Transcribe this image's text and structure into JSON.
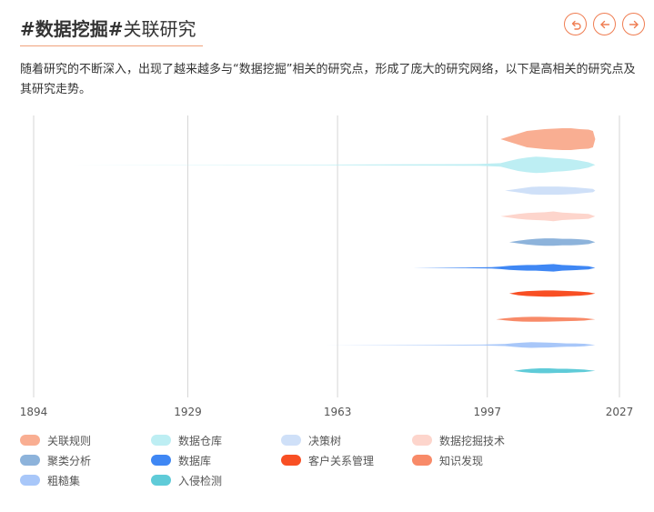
{
  "header": {
    "title_bold": "#数据挖掘#",
    "title_rest": "关联研究",
    "nav": [
      {
        "icon": "undo-icon"
      },
      {
        "icon": "arrow-left-icon"
      },
      {
        "icon": "arrow-right-icon"
      }
    ],
    "accent_color": "#ef7d52"
  },
  "description": "随着研究的不断深入，出现了越来越多与“数据挖掘”相关的研究点，形成了庞大的研究网络，以下是高相关的研究点及其研究走势。",
  "chart_data": {
    "type": "area",
    "subtype": "streamgraph",
    "x_ticks": [
      1894,
      1929,
      1963,
      1997,
      2027
    ],
    "xlim": [
      1894,
      2027
    ],
    "grid": true,
    "legend_position": "bottom",
    "series": [
      {
        "name": "关联规则",
        "color": "#f9ae92",
        "points": [
          [
            2000,
            0
          ],
          [
            2002,
            6
          ],
          [
            2004,
            12
          ],
          [
            2006,
            18
          ],
          [
            2008,
            20
          ],
          [
            2010,
            22
          ],
          [
            2012,
            23
          ],
          [
            2014,
            24
          ],
          [
            2016,
            24
          ],
          [
            2018,
            22
          ],
          [
            2020,
            21
          ],
          [
            2021,
            18
          ],
          [
            2021.5,
            0
          ]
        ]
      },
      {
        "name": "数据仓库",
        "color": "#bdeef3",
        "points": [
          [
            1902,
            0
          ],
          [
            1960,
            0.6
          ],
          [
            1995,
            2
          ],
          [
            2000,
            4
          ],
          [
            2002,
            9
          ],
          [
            2004,
            14
          ],
          [
            2006,
            17
          ],
          [
            2008,
            19
          ],
          [
            2010,
            18
          ],
          [
            2012,
            16
          ],
          [
            2014,
            15
          ],
          [
            2016,
            13
          ],
          [
            2018,
            10
          ],
          [
            2020,
            6
          ],
          [
            2021.5,
            0
          ]
        ]
      },
      {
        "name": "决策树",
        "color": "#cfe0f8",
        "points": [
          [
            2001,
            0
          ],
          [
            2003,
            3
          ],
          [
            2005,
            6
          ],
          [
            2007,
            9
          ],
          [
            2009,
            10
          ],
          [
            2011,
            10
          ],
          [
            2013,
            10
          ],
          [
            2015,
            9
          ],
          [
            2017,
            8
          ],
          [
            2019,
            6
          ],
          [
            2021,
            4
          ],
          [
            2021.5,
            0
          ]
        ]
      },
      {
        "name": "数据挖掘技术",
        "color": "#fdd5cc",
        "points": [
          [
            2000,
            0
          ],
          [
            2002,
            3
          ],
          [
            2004,
            6
          ],
          [
            2006,
            8
          ],
          [
            2008,
            9
          ],
          [
            2010,
            10
          ],
          [
            2012,
            12
          ],
          [
            2014,
            9
          ],
          [
            2016,
            8
          ],
          [
            2018,
            7
          ],
          [
            2020,
            6
          ],
          [
            2021.5,
            0
          ]
        ]
      },
      {
        "name": "聚类分析",
        "color": "#8db3db",
        "points": [
          [
            2002,
            0
          ],
          [
            2004,
            3
          ],
          [
            2006,
            6
          ],
          [
            2008,
            8
          ],
          [
            2010,
            9
          ],
          [
            2012,
            9
          ],
          [
            2014,
            8
          ],
          [
            2016,
            8
          ],
          [
            2018,
            7
          ],
          [
            2020,
            5
          ],
          [
            2021.5,
            0
          ]
        ]
      },
      {
        "name": "数据库",
        "color": "#3f87f4",
        "points": [
          [
            1980,
            0
          ],
          [
            1992,
            0.8
          ],
          [
            1998,
            1.5
          ],
          [
            2000,
            3
          ],
          [
            2002,
            5
          ],
          [
            2004,
            6
          ],
          [
            2006,
            7
          ],
          [
            2008,
            7
          ],
          [
            2010,
            8
          ],
          [
            2012,
            9
          ],
          [
            2014,
            7
          ],
          [
            2016,
            6
          ],
          [
            2018,
            5
          ],
          [
            2020,
            4
          ],
          [
            2021.5,
            0
          ]
        ]
      },
      {
        "name": "客户关系管理",
        "color": "#f84f24",
        "points": [
          [
            2002,
            0
          ],
          [
            2004,
            4
          ],
          [
            2006,
            6
          ],
          [
            2008,
            7
          ],
          [
            2010,
            7.5
          ],
          [
            2012,
            7.5
          ],
          [
            2014,
            7
          ],
          [
            2016,
            6
          ],
          [
            2018,
            5
          ],
          [
            2020,
            3
          ],
          [
            2021.5,
            0
          ]
        ]
      },
      {
        "name": "知识发现",
        "color": "#f88a68",
        "points": [
          [
            1999,
            0
          ],
          [
            2001,
            2.5
          ],
          [
            2003,
            4.5
          ],
          [
            2005,
            5.5
          ],
          [
            2007,
            6
          ],
          [
            2009,
            6
          ],
          [
            2011,
            5.5
          ],
          [
            2013,
            5
          ],
          [
            2015,
            4.5
          ],
          [
            2017,
            4
          ],
          [
            2019,
            3
          ],
          [
            2021.5,
            0
          ]
        ]
      },
      {
        "name": "粗糙集",
        "color": "#a8c7f9",
        "points": [
          [
            1960,
            0
          ],
          [
            1985,
            0.7
          ],
          [
            1996,
            1.2
          ],
          [
            2001,
            2.5
          ],
          [
            2003,
            4.5
          ],
          [
            2005,
            6
          ],
          [
            2007,
            7
          ],
          [
            2009,
            6.5
          ],
          [
            2011,
            6
          ],
          [
            2013,
            5
          ],
          [
            2015,
            4
          ],
          [
            2017,
            4
          ],
          [
            2019,
            3
          ],
          [
            2021.5,
            0
          ]
        ]
      },
      {
        "name": "入侵检测",
        "color": "#5fcbd8",
        "points": [
          [
            2003,
            0
          ],
          [
            2005,
            3
          ],
          [
            2007,
            5
          ],
          [
            2009,
            6
          ],
          [
            2011,
            6
          ],
          [
            2013,
            5
          ],
          [
            2015,
            5
          ],
          [
            2017,
            4
          ],
          [
            2019,
            3
          ],
          [
            2021.5,
            0
          ]
        ]
      }
    ]
  }
}
